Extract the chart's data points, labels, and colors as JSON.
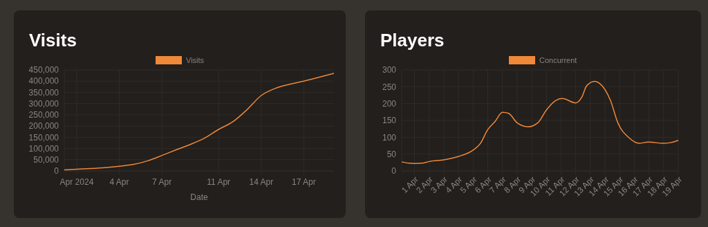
{
  "chart_data": [
    {
      "type": "line",
      "title": "Visits",
      "xlabel": "Date",
      "legend": "top",
      "grid": true,
      "marker": "none",
      "x": [
        "2024-03-31T03:00",
        "2024-04-01",
        "2024-04-02",
        "2024-04-03",
        "2024-04-04",
        "2024-04-05",
        "2024-04-06",
        "2024-04-07",
        "2024-04-08",
        "2024-04-09",
        "2024-04-10",
        "2024-04-11",
        "2024-04-12",
        "2024-04-13",
        "2024-04-14",
        "2024-04-15",
        "2024-04-16",
        "2024-04-17",
        "2024-04-18",
        "2024-04-19T03:00"
      ],
      "series": [
        {
          "name": "Visits",
          "color": "#f0883a",
          "values": [
            5000,
            8000,
            11000,
            15000,
            21000,
            29000,
            45000,
            69000,
            94000,
            118000,
            146000,
            185000,
            219000,
            273000,
            336000,
            368000,
            386000,
            400000,
            416000,
            435000
          ]
        }
      ],
      "xlim": [
        "2024-03-31T03:00",
        "2024-04-19T03:00"
      ],
      "xticks": [
        {
          "value": "2024-04-01",
          "label": "Apr 2024"
        },
        {
          "value": "2024-04-04",
          "label": "4 Apr"
        },
        {
          "value": "2024-04-07",
          "label": "7 Apr"
        },
        {
          "value": "2024-04-11",
          "label": "11 Apr"
        },
        {
          "value": "2024-04-14",
          "label": "14 Apr"
        },
        {
          "value": "2024-04-17",
          "label": "17 Apr"
        }
      ],
      "ylim": [
        0,
        450000
      ],
      "yticks": [
        {
          "value": 0,
          "label": "0"
        },
        {
          "value": 50000,
          "label": "50,000"
        },
        {
          "value": 100000,
          "label": "100,000"
        },
        {
          "value": 150000,
          "label": "150,000"
        },
        {
          "value": 200000,
          "label": "200,000"
        },
        {
          "value": 250000,
          "label": "250,000"
        },
        {
          "value": 300000,
          "label": "300,000"
        },
        {
          "value": 350000,
          "label": "350,000"
        },
        {
          "value": 400000,
          "label": "400,000"
        },
        {
          "value": 450000,
          "label": "450,000"
        }
      ]
    },
    {
      "type": "line",
      "title": "Players",
      "legend": "top",
      "grid": true,
      "marker": "none",
      "x": [
        "2024-03-31T03:00",
        "2024-03-31T15:00",
        "2024-04-01",
        "2024-04-01T12:00",
        "2024-04-02",
        "2024-04-03",
        "2024-04-04",
        "2024-04-05",
        "2024-04-05T12:00",
        "2024-04-06",
        "2024-04-06T12:00",
        "2024-04-07",
        "2024-04-07T10:00",
        "2024-04-08",
        "2024-04-08T18:00",
        "2024-04-09T10:00",
        "2024-04-10",
        "2024-04-10T15:00",
        "2024-04-11T02:00",
        "2024-04-12",
        "2024-04-12T10:00",
        "2024-04-12T18:00",
        "2024-04-13T07:00",
        "2024-04-13T15:00",
        "2024-04-14T09:00",
        "2024-04-14T21:00",
        "2024-04-15T15:00",
        "2024-04-16T08:00",
        "2024-04-16T23:00",
        "2024-04-18",
        "2024-04-18T11:00",
        "2024-04-19"
      ],
      "series": [
        {
          "name": "Concurrent",
          "color": "#f0883a",
          "values": [
            27,
            23,
            22,
            23,
            28,
            33,
            43,
            62,
            82,
            123,
            147,
            174,
            171,
            143,
            131,
            143,
            181,
            209,
            215,
            202,
            219,
            253,
            266,
            260,
            209,
            143,
            99,
            82,
            86,
            82,
            84,
            91
          ]
        }
      ],
      "xlim": [
        "2024-03-31T03:00",
        "2024-04-19"
      ],
      "xticks": [
        {
          "value": "2024-04-01",
          "label": "1 Apr"
        },
        {
          "value": "2024-04-02",
          "label": "2 Apr"
        },
        {
          "value": "2024-04-03",
          "label": "3 Apr"
        },
        {
          "value": "2024-04-04",
          "label": "4 Apr"
        },
        {
          "value": "2024-04-05",
          "label": "5 Apr"
        },
        {
          "value": "2024-04-06",
          "label": "6 Apr"
        },
        {
          "value": "2024-04-07",
          "label": "7 Apr"
        },
        {
          "value": "2024-04-08",
          "label": "8 Apr"
        },
        {
          "value": "2024-04-09",
          "label": "9 Apr"
        },
        {
          "value": "2024-04-10",
          "label": "10 Apr"
        },
        {
          "value": "2024-04-11",
          "label": "11 Apr"
        },
        {
          "value": "2024-04-12",
          "label": "12 Apr"
        },
        {
          "value": "2024-04-13",
          "label": "13 Apr"
        },
        {
          "value": "2024-04-14",
          "label": "14 Apr"
        },
        {
          "value": "2024-04-15",
          "label": "15 Apr"
        },
        {
          "value": "2024-04-16",
          "label": "16 Apr"
        },
        {
          "value": "2024-04-17",
          "label": "17 Apr"
        },
        {
          "value": "2024-04-18",
          "label": "18 Apr"
        },
        {
          "value": "2024-04-19",
          "label": "19 Apr"
        }
      ],
      "ylim": [
        0,
        300
      ],
      "yticks": [
        0,
        50,
        100,
        150,
        200,
        250,
        300
      ]
    }
  ]
}
